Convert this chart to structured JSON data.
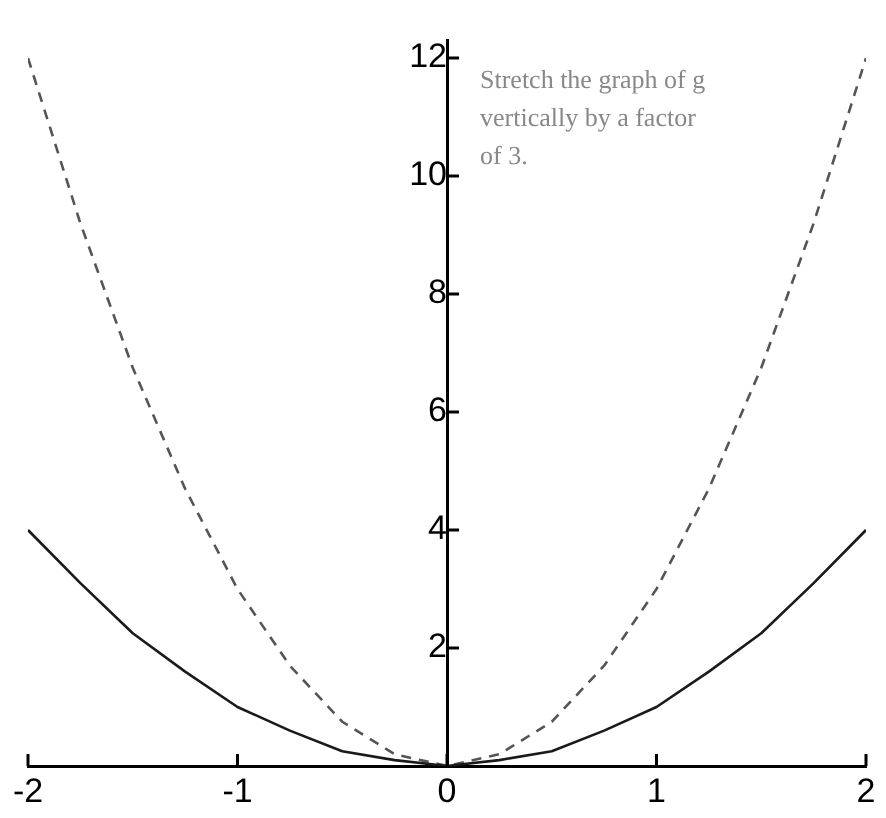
{
  "chart_data": {
    "type": "line",
    "x": [
      -2,
      -1.75,
      -1.5,
      -1.25,
      -1,
      -0.75,
      -0.5,
      -0.25,
      0,
      0.25,
      0.5,
      0.75,
      1,
      1.25,
      1.5,
      1.75,
      2
    ],
    "series": [
      {
        "color": "#1a1a1a",
        "line_style": "solid",
        "values": [
          4,
          3.1,
          2.25,
          1.6,
          1,
          0.6,
          0.25,
          0.1,
          0,
          0.1,
          0.25,
          0.6,
          1,
          1.6,
          2.25,
          3.1,
          4
        ]
      },
      {
        "color": "#555555",
        "line_style": "dashed",
        "values": [
          12,
          9.2,
          6.75,
          4.7,
          3,
          1.7,
          0.75,
          0.2,
          0,
          0.2,
          0.75,
          1.7,
          3,
          4.7,
          6.75,
          9.2,
          12
        ]
      }
    ],
    "xlim": [
      -2,
      2
    ],
    "xticks": [
      -2,
      -1,
      0,
      1,
      2
    ],
    "ylim": [
      0,
      12.3
    ],
    "yticks": [
      2,
      4,
      6,
      8,
      10,
      12
    ],
    "grid": false,
    "legend": false,
    "marker": "none",
    "annotations": [
      "Stretch the graph of g vertically by a factor of 3."
    ]
  }
}
